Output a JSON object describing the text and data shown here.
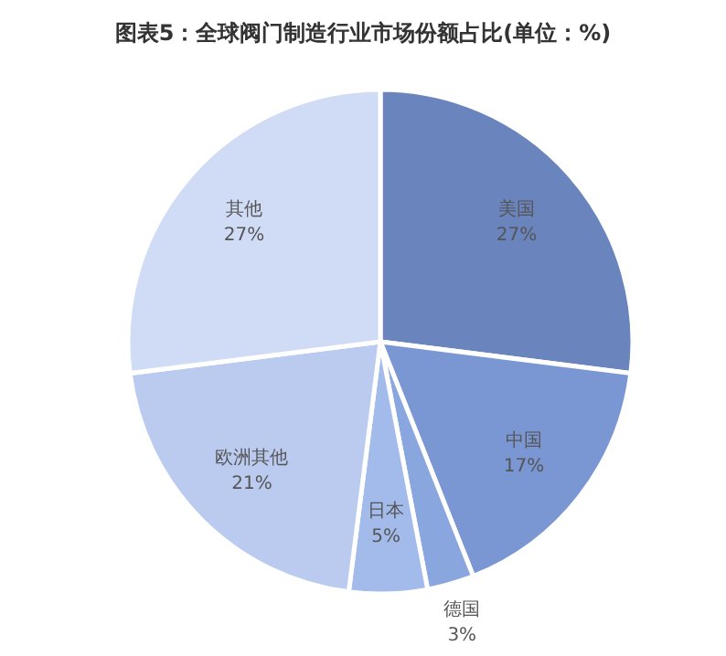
{
  "chart_data": {
    "type": "pie",
    "title": "图表5：全球阀门制造行业市场份额占比(单位：%)",
    "categories": [
      "美国",
      "中国",
      "德国",
      "日本",
      "欧洲其他",
      "其他"
    ],
    "values": [
      27,
      17,
      3,
      5,
      21,
      27
    ],
    "value_labels": [
      "27%",
      "17%",
      "3%",
      "5%",
      "21%",
      "27%"
    ],
    "colors": [
      "#6a84bd",
      "#7a97d3",
      "#8aa6de",
      "#a3bbea",
      "#bacbef",
      "#d0dcf5"
    ],
    "legend": false
  }
}
